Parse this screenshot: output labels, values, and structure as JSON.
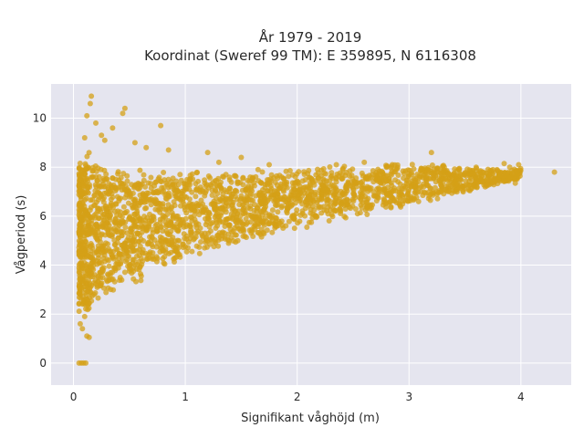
{
  "chart_data": {
    "type": "scatter",
    "title_lines": [
      "År 1979 - 2019",
      "Koordinat (Sweref 99 TM): E 359895, N 6116308"
    ],
    "xlabel": "Signifikant våghöjd (m)",
    "ylabel": "Vågperiod (s)",
    "xlim": [
      -0.2,
      4.45
    ],
    "ylim": [
      -0.9,
      11.4
    ],
    "x_ticks": [
      0,
      1,
      2,
      3,
      4
    ],
    "y_ticks": [
      0,
      2,
      4,
      6,
      8,
      10
    ],
    "x_tick_labels": [
      "0",
      "1",
      "2",
      "3",
      "4"
    ],
    "y_tick_labels": [
      "0",
      "2",
      "4",
      "6",
      "8",
      "10"
    ],
    "grid": true,
    "legend": "none",
    "colors": {
      "marker": "#D4A017",
      "plot_background": "#E5E5EF",
      "grid": "#FFFFFF",
      "page_background": "#FFFFFF"
    },
    "cloud_envelope": {
      "x": [
        0.05,
        0.1,
        0.2,
        0.3,
        0.5,
        0.75,
        1.0,
        1.5,
        2.0,
        2.5,
        3.0,
        3.5,
        3.8,
        4.0
      ],
      "y_low": [
        1.3,
        1.1,
        1.8,
        2.3,
        2.7,
        3.3,
        3.9,
        4.6,
        5.2,
        5.7,
        6.2,
        6.9,
        7.2,
        7.5
      ],
      "y_high": [
        8.8,
        9.5,
        8.9,
        8.5,
        8.3,
        8.4,
        8.3,
        8.0,
        8.2,
        8.3,
        8.4,
        8.1,
        8.0,
        8.0
      ]
    },
    "points": [
      {
        "x": 0.05,
        "y": 0.0
      },
      {
        "x": 0.07,
        "y": 0.0
      },
      {
        "x": 0.09,
        "y": 0.0
      },
      {
        "x": 0.11,
        "y": 0.0
      },
      {
        "x": 0.16,
        "y": 10.9
      },
      {
        "x": 0.15,
        "y": 10.6
      },
      {
        "x": 0.46,
        "y": 10.4
      },
      {
        "x": 0.44,
        "y": 10.2
      },
      {
        "x": 0.12,
        "y": 10.1
      },
      {
        "x": 0.2,
        "y": 9.8
      },
      {
        "x": 0.78,
        "y": 9.7
      },
      {
        "x": 0.35,
        "y": 9.6
      },
      {
        "x": 0.25,
        "y": 9.3
      },
      {
        "x": 0.1,
        "y": 9.2
      },
      {
        "x": 0.28,
        "y": 9.1
      },
      {
        "x": 0.55,
        "y": 9.0
      },
      {
        "x": 0.65,
        "y": 8.8
      },
      {
        "x": 0.85,
        "y": 8.7
      },
      {
        "x": 1.2,
        "y": 8.6
      },
      {
        "x": 1.3,
        "y": 8.2
      },
      {
        "x": 1.5,
        "y": 8.4
      },
      {
        "x": 1.65,
        "y": 7.9
      },
      {
        "x": 1.75,
        "y": 8.1
      },
      {
        "x": 2.35,
        "y": 8.1
      },
      {
        "x": 2.6,
        "y": 8.2
      },
      {
        "x": 2.85,
        "y": 8.1
      },
      {
        "x": 3.2,
        "y": 8.6
      },
      {
        "x": 3.3,
        "y": 8.0
      },
      {
        "x": 3.45,
        "y": 7.95
      },
      {
        "x": 3.6,
        "y": 8.0
      },
      {
        "x": 3.75,
        "y": 7.9
      },
      {
        "x": 3.9,
        "y": 8.0
      },
      {
        "x": 3.98,
        "y": 8.1
      },
      {
        "x": 3.85,
        "y": 8.15
      },
      {
        "x": 4.3,
        "y": 7.8
      },
      {
        "x": 3.8,
        "y": 7.6
      },
      {
        "x": 3.7,
        "y": 7.3
      },
      {
        "x": 3.55,
        "y": 7.1
      },
      {
        "x": 3.95,
        "y": 7.35
      },
      {
        "x": 0.12,
        "y": 1.1
      },
      {
        "x": 0.08,
        "y": 1.4
      },
      {
        "x": 0.06,
        "y": 1.6
      },
      {
        "x": 0.1,
        "y": 1.9
      },
      {
        "x": 0.14,
        "y": 1.05
      },
      {
        "x": 0.05,
        "y": 4.5
      },
      {
        "x": 0.06,
        "y": 6.4
      },
      {
        "x": 0.07,
        "y": 3.0
      }
    ]
  }
}
